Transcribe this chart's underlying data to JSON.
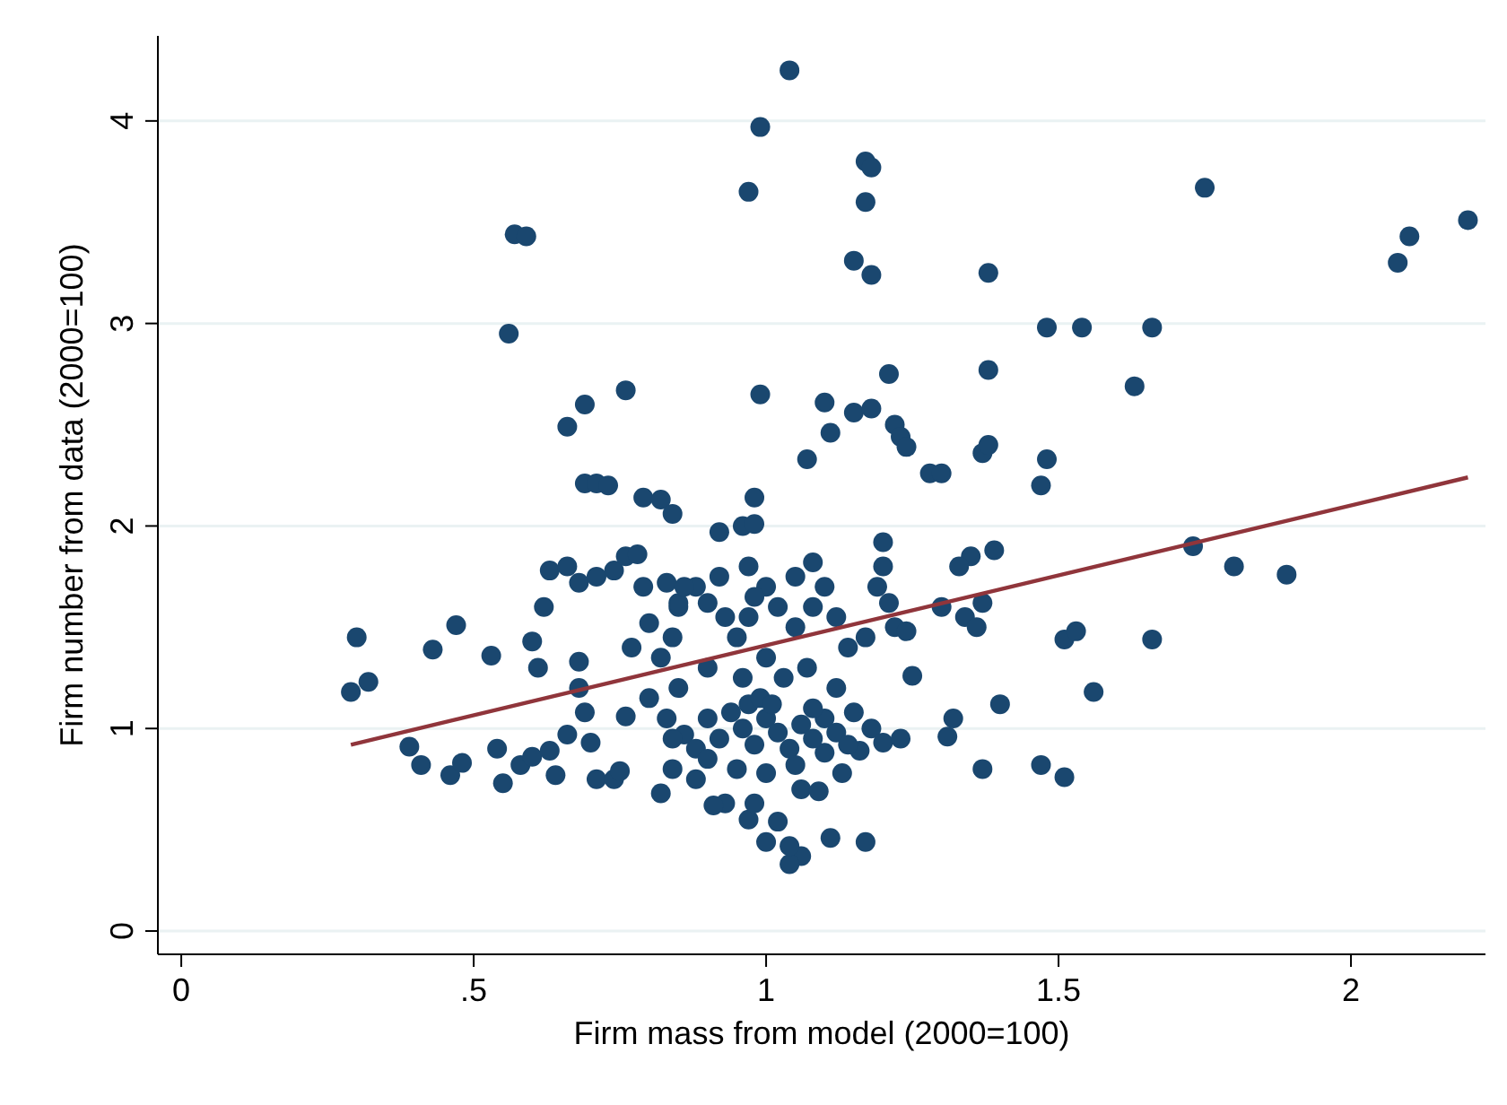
{
  "chart_data": {
    "type": "scatter",
    "xlabel": "Firm mass from model (2000=100)",
    "ylabel": "Firm number from data (2000=100)",
    "xlim": [
      -0.04,
      2.23
    ],
    "ylim": [
      -0.115,
      4.42
    ],
    "xticks": [
      0,
      {
        "value": 0.5,
        "label": ".5"
      },
      1,
      {
        "value": 1.5,
        "label": "1.5"
      },
      2
    ],
    "yticks": [
      0,
      1,
      2,
      3,
      4
    ],
    "grid": "y",
    "marker": "circle",
    "series": [
      {
        "color": "#1a476f",
        "x": [
          1.04,
          0.99,
          0.97,
          1.17,
          1.18,
          1.17,
          1.15,
          1.18,
          0.57,
          0.59,
          0.56,
          1.38,
          1.75,
          2.08,
          2.1,
          2.2,
          1.48,
          1.54,
          1.66,
          1.63,
          1.38,
          1.21,
          0.99,
          0.76,
          0.69,
          0.66,
          1.1,
          1.15,
          1.18,
          1.22,
          1.23,
          1.24,
          1.11,
          1.07,
          1.28,
          1.3,
          1.37,
          1.38,
          1.47,
          1.48,
          0.69,
          0.71,
          0.73,
          0.79,
          0.82,
          0.84,
          0.98,
          0.96,
          0.98,
          0.92,
          1.73,
          1.8,
          1.89,
          1.39,
          1.35,
          1.33,
          1.37,
          1.34,
          1.36,
          1.3,
          1.4,
          1.47,
          1.51,
          1.56,
          1.51,
          1.53,
          1.66,
          1.37,
          1.32,
          1.31,
          1.25,
          1.2,
          1.2,
          1.19,
          1.21,
          1.22,
          1.24,
          1.17,
          1.18,
          1.2,
          1.23,
          1.16,
          1.17,
          1.11,
          1.06,
          1.04,
          1.04,
          1.02,
          0.97,
          0.98,
          1.0,
          0.93,
          1.06,
          1.09,
          1.1,
          0.29,
          0.3,
          0.32,
          0.39,
          0.43,
          0.47,
          0.41,
          0.46,
          0.48,
          0.53,
          0.54,
          0.55,
          0.6,
          0.61,
          0.62,
          0.58,
          0.6,
          0.63,
          0.64,
          0.66,
          0.68,
          0.68,
          0.69,
          0.7,
          0.71,
          0.74,
          0.75,
          0.76,
          0.63,
          0.66,
          0.68,
          0.71,
          0.74,
          0.76,
          0.78,
          0.79,
          0.77,
          0.8,
          0.82,
          0.84,
          0.85,
          0.83,
          0.88,
          0.9,
          0.93,
          0.95,
          0.92,
          0.97,
          1.0,
          1.02,
          1.05,
          1.08,
          1.1,
          1.12,
          1.14,
          1.05,
          1.0,
          1.03,
          1.07,
          1.12,
          0.96,
          0.9,
          0.85,
          0.8,
          0.83,
          0.86,
          0.88,
          0.9,
          0.92,
          0.94,
          0.96,
          0.98,
          1.0,
          1.02,
          1.04,
          1.06,
          1.08,
          1.1,
          1.12,
          1.14,
          0.84,
          0.88,
          0.9,
          0.95,
          1.0,
          1.05,
          0.82,
          0.91,
          1.08,
          1.15,
          0.84,
          0.97,
          0.99,
          1.01,
          1.13,
          0.85,
          0.86,
          1.08,
          0.98,
          0.97
        ],
        "values": [
          4.25,
          3.97,
          3.65,
          3.8,
          3.77,
          3.6,
          3.31,
          3.24,
          3.44,
          3.43,
          2.95,
          3.25,
          3.67,
          3.3,
          3.43,
          3.51,
          2.98,
          2.98,
          2.98,
          2.69,
          2.77,
          2.75,
          2.65,
          2.67,
          2.6,
          2.49,
          2.61,
          2.56,
          2.58,
          2.5,
          2.44,
          2.39,
          2.46,
          2.33,
          2.26,
          2.26,
          2.36,
          2.4,
          2.2,
          2.33,
          2.21,
          2.21,
          2.2,
          2.14,
          2.13,
          2.06,
          2.14,
          2.0,
          2.01,
          1.97,
          1.9,
          1.8,
          1.76,
          1.88,
          1.85,
          1.8,
          1.62,
          1.55,
          1.5,
          1.6,
          1.12,
          0.82,
          0.76,
          1.18,
          1.44,
          1.48,
          1.44,
          0.8,
          1.05,
          0.96,
          1.26,
          1.92,
          1.8,
          1.7,
          1.62,
          1.5,
          1.48,
          1.45,
          1.0,
          0.93,
          0.95,
          0.89,
          0.44,
          0.46,
          0.37,
          0.33,
          0.42,
          0.54,
          0.55,
          0.63,
          0.44,
          0.63,
          0.7,
          0.69,
          0.88,
          1.18,
          1.45,
          1.23,
          0.91,
          1.39,
          1.51,
          0.82,
          0.77,
          0.83,
          1.36,
          0.9,
          0.73,
          1.43,
          1.3,
          1.6,
          0.82,
          0.86,
          0.89,
          0.77,
          0.97,
          1.33,
          1.2,
          1.08,
          0.93,
          0.75,
          0.75,
          0.79,
          1.06,
          1.78,
          1.8,
          1.72,
          1.75,
          1.78,
          1.85,
          1.86,
          1.7,
          1.4,
          1.52,
          1.35,
          1.45,
          1.6,
          1.72,
          1.7,
          1.62,
          1.55,
          1.45,
          1.75,
          1.8,
          1.7,
          1.6,
          1.75,
          1.82,
          1.7,
          1.55,
          1.4,
          1.5,
          1.35,
          1.25,
          1.3,
          1.2,
          1.25,
          1.3,
          1.2,
          1.15,
          1.05,
          0.97,
          0.9,
          1.05,
          0.95,
          1.08,
          1.0,
          0.92,
          1.05,
          0.98,
          0.9,
          1.02,
          0.95,
          1.05,
          0.98,
          0.92,
          0.8,
          0.75,
          0.85,
          0.8,
          0.78,
          0.82,
          0.68,
          0.62,
          1.1,
          1.08,
          0.95,
          1.12,
          1.15,
          1.12,
          0.78,
          1.62,
          1.7,
          1.6,
          1.65,
          1.55
        ]
      },
      {
        "type": "line",
        "color": "#90353b",
        "x": [
          0.29,
          2.2
        ],
        "values": [
          0.92,
          2.24
        ],
        "marker": "none"
      }
    ]
  }
}
